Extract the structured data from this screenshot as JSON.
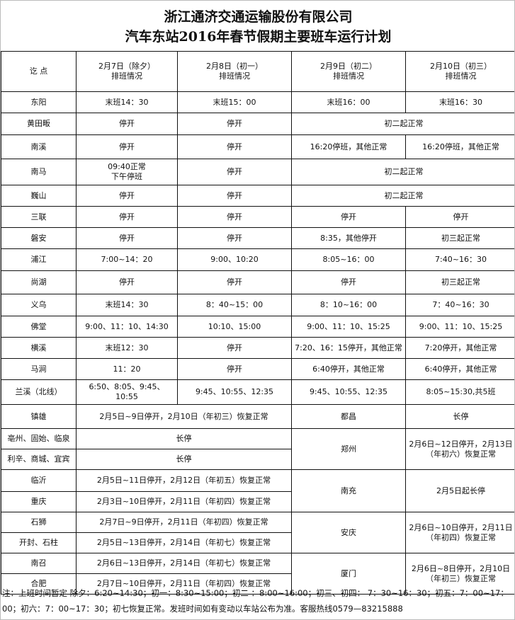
{
  "title_line1": "浙江通济交通运输股份有限公司",
  "title_line2": "汽车东站2016年春节假期主要班车运行计划",
  "header": {
    "place": "讫  点",
    "d1": "2月7日（除夕）\n排班情况",
    "d2": "2月8日（初一）\n排班情况",
    "d3": "2月9日（初二）\n排班情况",
    "d4": "2月10日（初三）\n排班情况"
  },
  "rows": [
    {
      "place": "东阳",
      "c": [
        "末班14：30",
        "末班15：00",
        "末班16：00",
        "末班16：30"
      ]
    },
    {
      "place": "黄田畈",
      "c": [
        "停开",
        "停开",
        "初二起正常"
      ]
    },
    {
      "place": "南溪",
      "c": [
        "停开",
        "停开",
        "16:20停班，其他正常",
        "16:20停班，其他正常"
      ]
    },
    {
      "place": "南马",
      "c": [
        "09:40正常\n下午停班",
        "停开",
        "初二起正常"
      ]
    },
    {
      "place": "巍山",
      "c": [
        "停开",
        "停开",
        "初二起正常"
      ]
    },
    {
      "place": "三联",
      "c": [
        "停开",
        "停开",
        "停开",
        "停开"
      ]
    },
    {
      "place": "磐安",
      "c": [
        "停开",
        "停开",
        "8:35，其他停开",
        "初三起正常"
      ]
    },
    {
      "place": "浦江",
      "c": [
        "7:00~14：20",
        "9:00、10:20",
        "8:05~16：00",
        "7:40~16：30"
      ]
    },
    {
      "place": "尚湖",
      "c": [
        "停开",
        "停开",
        "停开",
        "初三起正常"
      ]
    },
    {
      "place": "义乌",
      "c": [
        "末班14：30",
        "8：40~15：00",
        "8：10~16：00",
        "7：40~16：30"
      ]
    },
    {
      "place": "佛堂",
      "c": [
        "9:00、11：10、14:30",
        "10:10、15:00",
        "9:00、11：10、15:25",
        "9:00、11：10、15:25"
      ]
    },
    {
      "place": "横溪",
      "c": [
        "末班12：30",
        "停开",
        "7:20、16：15停开，其他正常",
        "7:20停开，其他正常"
      ]
    },
    {
      "place": "马涧",
      "c": [
        "11：20",
        "停开",
        "6:40停开，其他正常",
        "6:40停开，其他正常"
      ]
    },
    {
      "place": "兰溪（北线）",
      "c": [
        "6:50、8:05、9:45、\n10:55",
        "9:45、10:55、12:35",
        "9:45、10:55、12:35",
        "8:05~15:30,共5班"
      ]
    }
  ],
  "lower": [
    {
      "place": "镇雄",
      "status": "2月5日~9日停开，2月10日（年初三）恢复正常"
    },
    {
      "place": "亳州、固始、临泉",
      "status": "长停"
    },
    {
      "place": "利辛、商城、宜宾",
      "status": "长停"
    },
    {
      "place": "临沂",
      "status": "2月5日~11日停开，2月12日（年初五）恢复正常"
    },
    {
      "place": "重庆",
      "status": "2月3日~10日停开，2月11日（年初四）恢复正常"
    },
    {
      "place": "石狮",
      "status": "2月7日~9日停开，2月11日（年初四）恢复正常"
    },
    {
      "place": "开封、石柱",
      "status": "2月5日~13日停开，2月14日（年初七）恢复正常"
    },
    {
      "place": "南召",
      "status": "2月6日~13日停开，2月14日（年初七）恢复正常"
    },
    {
      "place": "合肥",
      "status": "2月7日~10日停开，2月11日（年初四）恢复正常"
    }
  ],
  "right": [
    {
      "place": "都昌",
      "status": "长停"
    },
    {
      "place": "郑州",
      "status": "2月6日~12日停开，2月13日（年初六）恢复正常"
    },
    {
      "place": "南充",
      "status": "2月5日起长停"
    },
    {
      "place": "安庆",
      "status": "2月6日~10日停开，2月11日（年初四）恢复正常"
    },
    {
      "place": "厦门",
      "status": "2月6日~8日停开，2月10日（年初三）恢复正常"
    }
  ],
  "note": "注：上班时间暂定 除夕：6:20~14:30；初一：8:30~15:00；初二 ：8:00~16:00；初三、初四： 7：30~16：30；初五：7：00~17：00；初六：7：00~17：30；初七恢复正常。发班时间如有变动以车站公布为准。客服热线0579—83215888"
}
